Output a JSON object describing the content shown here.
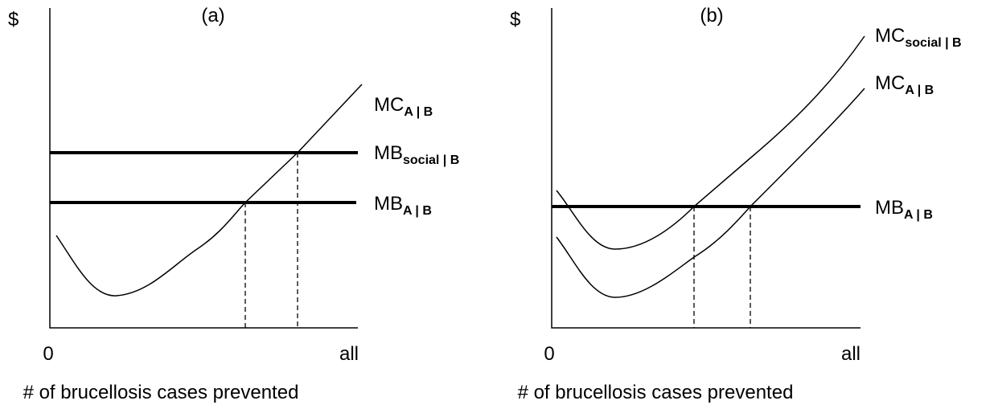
{
  "panels": [
    {
      "title": "(a)",
      "y_label": "$",
      "x_start": "0",
      "x_end": "all",
      "x_label": "# of brucellosis cases prevented",
      "curves": [
        {
          "main": "MC",
          "sub": "A | B"
        },
        {
          "main": "MB",
          "sub": "social | B"
        },
        {
          "main": "MB",
          "sub": "A | B"
        }
      ]
    },
    {
      "title": "(b)",
      "y_label": "$",
      "x_start": "0",
      "x_end": "all",
      "x_label": "# of brucellosis cases prevented",
      "curves": [
        {
          "main": "MC",
          "sub": "social | B"
        },
        {
          "main": "MC",
          "sub": "A | B"
        },
        {
          "main": "MB",
          "sub": "A | B"
        }
      ]
    }
  ]
}
